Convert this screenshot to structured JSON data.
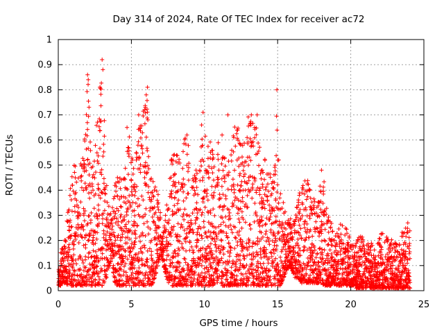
{
  "chart_data": {
    "type": "scatter",
    "title": "Day 314 of 2024, Rate Of TEC Index for receiver ac72",
    "xlabel": "GPS time / hours",
    "ylabel": "ROTI / TECUs",
    "xlim": [
      0,
      25
    ],
    "ylim": [
      0,
      1
    ],
    "xticks": [
      0,
      5,
      10,
      15,
      20,
      25
    ],
    "yticks": [
      0,
      0.1,
      0.2,
      0.3,
      0.4,
      0.5,
      0.6,
      0.7,
      0.8,
      0.9,
      1
    ],
    "xtick_labels": [
      "0",
      "5",
      "10",
      "15",
      "20",
      "25"
    ],
    "ytick_labels": [
      "0",
      "0.1",
      "0.2",
      "0.3",
      "0.4",
      "0.5",
      "0.6",
      "0.7",
      "0.8",
      "0.9",
      "1"
    ],
    "grid": true,
    "marker": "+",
    "marker_color": "#ff0000",
    "series": [
      {
        "name": "ROTI",
        "envelope_description_hours": "dense scatter of ROTI samples every few minutes for multiple satellites",
        "x": [
          0.05,
          0.1,
          0.2,
          0.3,
          0.4,
          0.5,
          0.6,
          0.7,
          0.8,
          0.9,
          1.0,
          1.1,
          1.2,
          1.3,
          1.4,
          1.5,
          1.6,
          1.7,
          1.8,
          1.9,
          2.0,
          2.05,
          2.1,
          2.15,
          2.2,
          2.3,
          2.4,
          2.5,
          2.6,
          2.7,
          2.8,
          2.9,
          3.0,
          3.05,
          3.1,
          3.2,
          3.3,
          3.4,
          3.5,
          3.6,
          3.7,
          3.8,
          3.9,
          4.0,
          4.2,
          4.4,
          4.6,
          4.8,
          5.0,
          5.2,
          5.4,
          5.6,
          5.8,
          6.0,
          6.1,
          6.2,
          6.4,
          6.6,
          6.8,
          7.0,
          7.2,
          7.4,
          7.6,
          7.8,
          8.0,
          8.2,
          8.4,
          8.6,
          8.8,
          9.0,
          9.2,
          9.4,
          9.6,
          9.8,
          9.9,
          10.0,
          10.2,
          10.4,
          10.6,
          10.8,
          11.0,
          11.2,
          11.4,
          11.6,
          11.8,
          12.0,
          12.2,
          12.4,
          12.6,
          12.8,
          13.0,
          13.2,
          13.4,
          13.6,
          13.8,
          14.0,
          14.2,
          14.4,
          14.6,
          14.8,
          14.95,
          15.2,
          15.4,
          15.6,
          15.8,
          16.0,
          16.2,
          16.4,
          16.6,
          16.8,
          17.0,
          17.2,
          17.4,
          17.6,
          17.8,
          18.0,
          18.2,
          18.4,
          18.6,
          18.8,
          19.0,
          19.2,
          19.4,
          19.6,
          19.8,
          20.0,
          20.2,
          20.4,
          20.6,
          20.8,
          21.0,
          21.2,
          21.4,
          21.6,
          21.8,
          22.0,
          22.2,
          22.4,
          22.6,
          22.8,
          23.0,
          23.2,
          23.4,
          23.6,
          23.8,
          24.0
        ],
        "y_max": [
          0.12,
          0.14,
          0.16,
          0.18,
          0.2,
          0.22,
          0.3,
          0.38,
          0.42,
          0.45,
          0.48,
          0.52,
          0.5,
          0.48,
          0.5,
          0.55,
          0.6,
          0.62,
          0.65,
          0.7,
          0.86,
          0.85,
          0.84,
          0.75,
          0.62,
          0.58,
          0.5,
          0.55,
          0.7,
          0.72,
          0.78,
          0.88,
          0.92,
          0.9,
          0.8,
          0.6,
          0.45,
          0.38,
          0.36,
          0.35,
          0.34,
          0.45,
          0.46,
          0.47,
          0.46,
          0.44,
          0.5,
          0.65,
          0.55,
          0.5,
          0.6,
          0.7,
          0.72,
          0.8,
          0.81,
          0.5,
          0.45,
          0.42,
          0.4,
          0.3,
          0.3,
          0.35,
          0.48,
          0.56,
          0.58,
          0.55,
          0.5,
          0.6,
          0.62,
          0.58,
          0.45,
          0.5,
          0.52,
          0.6,
          0.71,
          0.7,
          0.65,
          0.62,
          0.58,
          0.56,
          0.62,
          0.6,
          0.55,
          0.6,
          0.62,
          0.66,
          0.7,
          0.6,
          0.58,
          0.62,
          0.7,
          0.68,
          0.7,
          0.66,
          0.6,
          0.55,
          0.52,
          0.5,
          0.45,
          0.5,
          0.8,
          0.4,
          0.36,
          0.3,
          0.28,
          0.3,
          0.32,
          0.4,
          0.42,
          0.44,
          0.45,
          0.42,
          0.4,
          0.38,
          0.35,
          0.48,
          0.44,
          0.3,
          0.28,
          0.26,
          0.22,
          0.25,
          0.28,
          0.26,
          0.24,
          0.2,
          0.18,
          0.2,
          0.22,
          0.22,
          0.2,
          0.2,
          0.19,
          0.18,
          0.2,
          0.22,
          0.24,
          0.22,
          0.2,
          0.22,
          0.2,
          0.18,
          0.22,
          0.25,
          0.27,
          0.24
        ],
        "y_min": [
          0.02,
          0.02,
          0.02,
          0.03,
          0.03,
          0.03,
          0.02,
          0.02,
          0.02,
          0.02,
          0.02,
          0.02,
          0.02,
          0.02,
          0.02,
          0.02,
          0.02,
          0.02,
          0.02,
          0.02,
          0.02,
          0.02,
          0.02,
          0.02,
          0.02,
          0.02,
          0.02,
          0.02,
          0.02,
          0.02,
          0.02,
          0.02,
          0.02,
          0.02,
          0.02,
          0.05,
          0.05,
          0.08,
          0.1,
          0.12,
          0.1,
          0.05,
          0.02,
          0.02,
          0.02,
          0.02,
          0.02,
          0.02,
          0.02,
          0.02,
          0.02,
          0.02,
          0.02,
          0.02,
          0.02,
          0.02,
          0.02,
          0.05,
          0.1,
          0.15,
          0.1,
          0.05,
          0.02,
          0.02,
          0.02,
          0.02,
          0.02,
          0.02,
          0.02,
          0.02,
          0.02,
          0.02,
          0.02,
          0.02,
          0.02,
          0.02,
          0.02,
          0.02,
          0.02,
          0.02,
          0.02,
          0.02,
          0.02,
          0.02,
          0.02,
          0.02,
          0.02,
          0.02,
          0.02,
          0.02,
          0.02,
          0.02,
          0.02,
          0.02,
          0.02,
          0.02,
          0.02,
          0.02,
          0.02,
          0.02,
          0.02,
          0.02,
          0.05,
          0.08,
          0.1,
          0.08,
          0.05,
          0.05,
          0.03,
          0.03,
          0.03,
          0.03,
          0.03,
          0.03,
          0.03,
          0.03,
          0.02,
          0.02,
          0.02,
          0.02,
          0.02,
          0.02,
          0.02,
          0.02,
          0.02,
          0.02,
          0.02,
          0.01,
          0.01,
          0.01,
          0.01,
          0.01,
          0.01,
          0.01,
          0.01,
          0.01,
          0.01,
          0.01,
          0.01,
          0.01,
          0.01,
          0.01,
          0.01,
          0.01,
          0.01,
          0.01
        ]
      }
    ],
    "notable_points": [
      {
        "x": 3.0,
        "y": 0.92
      },
      {
        "x": 3.05,
        "y": 0.88
      },
      {
        "x": 2.0,
        "y": 0.86
      },
      {
        "x": 2.05,
        "y": 0.84
      },
      {
        "x": 6.1,
        "y": 0.81
      },
      {
        "x": 14.95,
        "y": 0.8
      },
      {
        "x": 5.9,
        "y": 0.72
      },
      {
        "x": 9.9,
        "y": 0.71
      },
      {
        "x": 11.6,
        "y": 0.7
      },
      {
        "x": 13.2,
        "y": 0.7
      },
      {
        "x": 13.6,
        "y": 0.7
      },
      {
        "x": 5.5,
        "y": 0.7
      },
      {
        "x": 4.7,
        "y": 0.65
      },
      {
        "x": 9.8,
        "y": 0.66
      },
      {
        "x": 11.2,
        "y": 0.62
      },
      {
        "x": 8.8,
        "y": 0.62
      },
      {
        "x": 18.0,
        "y": 0.48
      },
      {
        "x": 23.9,
        "y": 0.27
      }
    ]
  }
}
